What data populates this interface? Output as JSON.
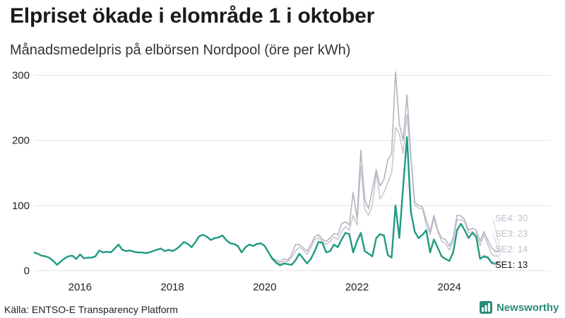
{
  "title": "Elpriset ökade i elområde 1 i oktober",
  "subtitle": "Månadsmedelpris på elbörsen Nordpool (öre per kWh)",
  "source": "Källa: ENTSO-E Transparency Platform",
  "brand": "Newsworthy",
  "colors": {
    "SE1": "#1f9a80",
    "SE2": "#d4d2da",
    "SE3": "#c8c6d0",
    "SE4": "#b6b3c2",
    "brand": "#2a8c7b"
  },
  "chart_data": {
    "type": "line",
    "x_range": [
      "2015-01",
      "2024-10"
    ],
    "xlim": [
      2015.0,
      2026.2
    ],
    "ylim": [
      0,
      320
    ],
    "y_ticks": [
      0,
      100,
      200,
      300
    ],
    "x_ticks": [
      "2016",
      "2018",
      "2020",
      "2022",
      "2024"
    ],
    "grid": true,
    "end_labels": [
      "SE4: 30",
      "SE3: 23",
      "SE2: 14",
      "SE1: 13"
    ],
    "series": [
      {
        "name": "SE1",
        "values": [
          28,
          26,
          23,
          22,
          20,
          15,
          9,
          14,
          19,
          22,
          23,
          18,
          25,
          19,
          20,
          20,
          22,
          31,
          28,
          29,
          28,
          34,
          40,
          32,
          30,
          31,
          29,
          28,
          28,
          27,
          28,
          30,
          32,
          34,
          30,
          32,
          30,
          33,
          38,
          44,
          41,
          36,
          44,
          53,
          55,
          52,
          47,
          50,
          51,
          54,
          47,
          42,
          41,
          38,
          28,
          36,
          40,
          38,
          41,
          42,
          38,
          28,
          18,
          12,
          8,
          11,
          10,
          9,
          16,
          26,
          19,
          11,
          18,
          30,
          44,
          43,
          28,
          30,
          40,
          36,
          48,
          58,
          56,
          28,
          45,
          58,
          30,
          26,
          22,
          50,
          56,
          54,
          24,
          20,
          100,
          50,
          130,
          205,
          90,
          60,
          50,
          55,
          62,
          28,
          48,
          35,
          22,
          18,
          15,
          28,
          62,
          72,
          62,
          50,
          58,
          52,
          18,
          22,
          20,
          12,
          10,
          13
        ]
      },
      {
        "name": "SE2",
        "values": [
          28,
          26,
          23,
          22,
          20,
          15,
          9,
          14,
          19,
          22,
          23,
          18,
          25,
          19,
          20,
          20,
          22,
          31,
          28,
          29,
          28,
          34,
          40,
          32,
          30,
          31,
          29,
          28,
          28,
          27,
          28,
          30,
          32,
          34,
          30,
          32,
          30,
          33,
          38,
          44,
          41,
          36,
          44,
          53,
          55,
          52,
          47,
          50,
          51,
          54,
          47,
          42,
          41,
          38,
          28,
          36,
          40,
          38,
          41,
          42,
          38,
          28,
          18,
          12,
          8,
          11,
          10,
          9,
          16,
          26,
          19,
          11,
          18,
          30,
          44,
          43,
          28,
          30,
          40,
          36,
          48,
          58,
          56,
          28,
          45,
          58,
          30,
          26,
          22,
          50,
          56,
          54,
          24,
          20,
          100,
          50,
          130,
          205,
          90,
          60,
          50,
          55,
          62,
          28,
          48,
          35,
          22,
          18,
          15,
          28,
          62,
          72,
          62,
          50,
          58,
          52,
          18,
          24,
          22,
          14,
          13,
          14
        ]
      },
      {
        "name": "SE3",
        "values": [
          28,
          26,
          23,
          22,
          20,
          15,
          9,
          14,
          19,
          22,
          23,
          18,
          25,
          19,
          20,
          20,
          22,
          31,
          28,
          29,
          28,
          34,
          40,
          32,
          30,
          31,
          29,
          28,
          28,
          27,
          28,
          30,
          32,
          34,
          30,
          32,
          30,
          33,
          38,
          44,
          41,
          36,
          44,
          53,
          55,
          52,
          47,
          50,
          51,
          54,
          47,
          42,
          41,
          38,
          28,
          36,
          40,
          38,
          41,
          42,
          38,
          28,
          20,
          14,
          11,
          14,
          14,
          20,
          30,
          36,
          32,
          25,
          35,
          48,
          50,
          45,
          40,
          45,
          52,
          48,
          60,
          68,
          62,
          85,
          70,
          160,
          95,
          85,
          100,
          150,
          110,
          120,
          135,
          150,
          220,
          210,
          180,
          240,
          170,
          100,
          96,
          95,
          70,
          55,
          80,
          60,
          45,
          42,
          32,
          45,
          78,
          78,
          75,
          58,
          60,
          57,
          38,
          55,
          40,
          25,
          22,
          23
        ]
      },
      {
        "name": "SE4",
        "values": [
          28,
          26,
          23,
          22,
          20,
          15,
          9,
          14,
          19,
          22,
          23,
          18,
          25,
          19,
          20,
          20,
          22,
          31,
          28,
          29,
          28,
          34,
          40,
          32,
          30,
          31,
          29,
          28,
          28,
          27,
          28,
          30,
          32,
          34,
          30,
          32,
          30,
          33,
          38,
          44,
          41,
          36,
          44,
          53,
          55,
          52,
          47,
          50,
          51,
          54,
          47,
          42,
          41,
          38,
          28,
          36,
          40,
          38,
          41,
          42,
          38,
          28,
          20,
          16,
          14,
          18,
          16,
          25,
          40,
          40,
          35,
          30,
          40,
          52,
          55,
          48,
          45,
          50,
          57,
          55,
          72,
          75,
          70,
          120,
          80,
          185,
          110,
          95,
          125,
          155,
          130,
          140,
          170,
          180,
          305,
          225,
          200,
          270,
          175,
          105,
          100,
          98,
          78,
          60,
          85,
          62,
          50,
          48,
          38,
          50,
          85,
          84,
          78,
          62,
          65,
          62,
          45,
          60,
          47,
          35,
          30,
          30
        ]
      }
    ]
  }
}
